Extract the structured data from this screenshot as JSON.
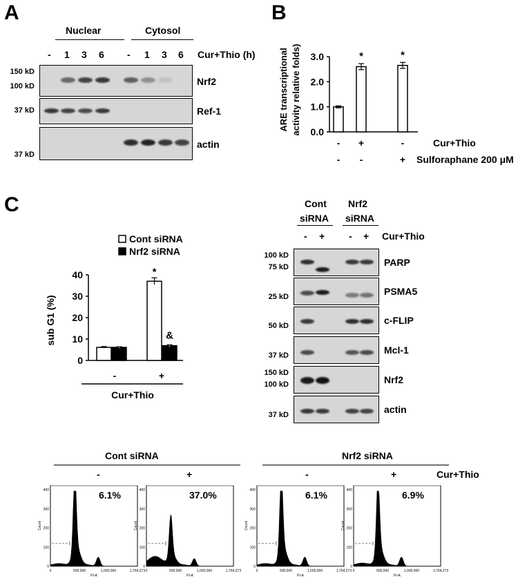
{
  "panelA": {
    "letter": "A",
    "group_labels": [
      "Nuclear",
      "Cytosol"
    ],
    "lanes": [
      "-",
      "1",
      "3",
      "6",
      "-",
      "1",
      "3",
      "6"
    ],
    "treatment": "Cur+Thio  (h)",
    "blots": [
      {
        "name": "Nrf2",
        "markers": [
          "150 kD",
          "100 kD"
        ]
      },
      {
        "name": "Ref-1",
        "markers": [
          "37 kD"
        ]
      },
      {
        "name": "actin",
        "markers": [
          "37 kD"
        ]
      }
    ],
    "band_levels": {
      "Nrf2": [
        0,
        0.55,
        0.75,
        0.8,
        0.6,
        0.35,
        0.1,
        0
      ],
      "Ref-1": [
        0.8,
        0.75,
        0.7,
        0.8,
        0,
        0,
        0,
        0
      ],
      "actin": [
        0,
        0,
        0,
        0,
        0.85,
        0.9,
        0.8,
        0.75
      ]
    }
  },
  "panelB": {
    "letter": "B",
    "ylabel_line1": "ARE  transcriptional",
    "ylabel_line2": "activity relative folds)",
    "row1": [
      "-",
      "+",
      "-"
    ],
    "row2": [
      "-",
      "-",
      "+"
    ],
    "row1_label": "Cur+Thio",
    "row2_label": "Sulforaphane 200 μM",
    "asterisk": "*"
  },
  "panelC": {
    "letter": "C",
    "legend": [
      "Cont siRNA",
      "Nrf2 siRNA"
    ],
    "ylabel": "sub G1 (%)",
    "x_signs": [
      "-",
      "+"
    ],
    "xlabel": "Cur+Thio",
    "asterisk": "*",
    "ampersand": "&",
    "blot_groups": [
      {
        "line1": "Cont",
        "line2": "siRNA"
      },
      {
        "line1": "Nrf2",
        "line2": "siRNA"
      }
    ],
    "blot_lanes": [
      "-",
      "+",
      "-",
      "+"
    ],
    "blot_treatment": "Cur+Thio",
    "blots": [
      {
        "name": "PARP",
        "markers": [
          "100 kD",
          "75 kD"
        ]
      },
      {
        "name": "PSMA5",
        "markers": [
          "25 kD"
        ]
      },
      {
        "name": "c-FLIP",
        "markers": [
          "50 kD"
        ]
      },
      {
        "name": "Mcl-1",
        "markers": [
          "37 kD"
        ]
      },
      {
        "name": "Nrf2",
        "markers": [
          "150 kD",
          "100 kD"
        ]
      },
      {
        "name": "actin",
        "markers": [
          "37 kD"
        ]
      }
    ]
  },
  "flow": {
    "groups": [
      "Cont siRNA",
      "Nrf2 siRNA"
    ],
    "signs": [
      "-",
      "+",
      "-",
      "+"
    ],
    "treatment": "Cur+Thio",
    "percents": [
      "6.1%",
      "37.0%",
      "6.1%",
      "6.9%"
    ],
    "y_ticks": [
      "0",
      "100",
      "200",
      "300",
      "400"
    ],
    "x_ticks": [
      "0",
      "500,000",
      "1,000,000",
      "1,764,273"
    ],
    "y_axis_label": "Count",
    "x_axis_label": "PI-A"
  },
  "chart_data": [
    {
      "type": "bar",
      "categories": [
        "- / -",
        "+ / -",
        "- / +"
      ],
      "values": [
        1.0,
        2.6,
        2.65
      ],
      "errors": [
        0.04,
        0.12,
        0.12
      ],
      "ylabel": "ARE  transcriptional activity relative folds)",
      "ylim": [
        0,
        3.0
      ],
      "yticks": [
        "0.0",
        "1.0",
        "2.0",
        "3.0"
      ]
    },
    {
      "type": "bar",
      "categories": [
        "-",
        "+"
      ],
      "series": [
        {
          "name": "Cont siRNA",
          "values": [
            6.1,
            37.0
          ],
          "errors": [
            0.4,
            1.6
          ]
        },
        {
          "name": "Nrf2 siRNA",
          "values": [
            6.1,
            6.9
          ],
          "errors": [
            0.3,
            0.4
          ]
        }
      ],
      "ylabel": "sub G1 (%)",
      "xlabel": "Cur+Thio",
      "ylim": [
        0,
        40
      ],
      "yticks": [
        "0",
        "10",
        "20",
        "30",
        "40"
      ]
    }
  ]
}
